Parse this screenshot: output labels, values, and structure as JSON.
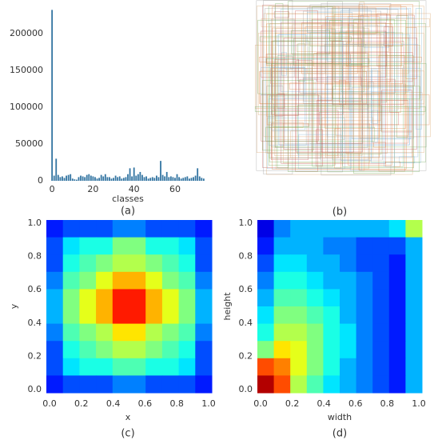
{
  "chart_data": [
    {
      "type": "bar",
      "caption": "(a)",
      "x_label": "classes",
      "color": "#3274a1",
      "x": [
        0,
        1,
        2,
        3,
        4,
        5,
        6,
        7,
        8,
        9,
        10,
        11,
        12,
        13,
        14,
        15,
        16,
        17,
        18,
        19,
        20,
        21,
        22,
        23,
        24,
        25,
        26,
        27,
        28,
        29,
        30,
        31,
        32,
        33,
        34,
        35,
        36,
        37,
        38,
        39,
        40,
        41,
        42,
        43,
        44,
        45,
        46,
        47,
        48,
        49,
        50,
        51,
        52,
        53,
        54,
        55,
        56,
        57,
        58,
        59,
        60,
        61,
        62,
        63,
        64,
        65,
        66,
        67,
        68,
        69,
        70,
        71,
        72,
        73,
        74
      ],
      "values": [
        232000,
        7000,
        30000,
        8000,
        5000,
        6000,
        4000,
        7000,
        8000,
        9000,
        3000,
        2000,
        1500,
        5000,
        7000,
        6000,
        5000,
        8000,
        9000,
        7000,
        6000,
        5000,
        3000,
        4000,
        8000,
        6000,
        9000,
        5000,
        5000,
        3000,
        4000,
        7000,
        5000,
        6000,
        3000,
        4000,
        5000,
        9000,
        17000,
        6000,
        18000,
        7000,
        9000,
        12000,
        8000,
        5000,
        6000,
        3000,
        4000,
        5000,
        4000,
        7000,
        5000,
        27000,
        8000,
        6000,
        12000,
        5000,
        6000,
        5000,
        4000,
        9000,
        5000,
        3000,
        4000,
        5000,
        6000,
        3000,
        4000,
        5000,
        7000,
        17000,
        6000,
        4000,
        3000
      ],
      "xlim": [
        -2,
        76
      ],
      "xticks": [
        0,
        20,
        40,
        60
      ],
      "ylim": [
        0,
        240000
      ],
      "yticks": [
        0,
        50000,
        100000,
        150000,
        200000
      ]
    },
    {
      "type": "boxes",
      "caption": "(b)"
    },
    {
      "type": "heatmap",
      "caption": "(c)",
      "x_label": "x",
      "y_label": "y",
      "xlim": [
        0,
        1
      ],
      "ylim": [
        0,
        1
      ],
      "xticks": [
        {
          "value": 0,
          "label": "0.0"
        },
        {
          "value": 0.2,
          "label": "0.2"
        },
        {
          "value": 0.4,
          "label": "0.4"
        },
        {
          "value": 0.6,
          "label": "0.6"
        },
        {
          "value": 0.8,
          "label": "0.8"
        },
        {
          "value": 1,
          "label": "1.0"
        }
      ],
      "yticks": [
        {
          "value": 0,
          "label": "0.0"
        },
        {
          "value": 0.2,
          "label": "0.2"
        },
        {
          "value": 0.4,
          "label": "0.4"
        },
        {
          "value": 0.6,
          "label": "0.6"
        },
        {
          "value": 0.8,
          "label": "0.8"
        },
        {
          "value": 1,
          "label": "1.0"
        }
      ],
      "z": [
        [
          0.15,
          0.2,
          0.2,
          0.2,
          0.25,
          0.25,
          0.2,
          0.2,
          0.2,
          0.15
        ],
        [
          0.2,
          0.35,
          0.4,
          0.4,
          0.5,
          0.5,
          0.4,
          0.4,
          0.35,
          0.2
        ],
        [
          0.2,
          0.4,
          0.45,
          0.5,
          0.55,
          0.55,
          0.5,
          0.45,
          0.4,
          0.2
        ],
        [
          0.25,
          0.45,
          0.5,
          0.6,
          0.7,
          0.7,
          0.6,
          0.5,
          0.45,
          0.25
        ],
        [
          0.3,
          0.5,
          0.6,
          0.7,
          0.85,
          0.85,
          0.7,
          0.6,
          0.5,
          0.3
        ],
        [
          0.3,
          0.5,
          0.6,
          0.7,
          0.85,
          0.85,
          0.7,
          0.6,
          0.5,
          0.3
        ],
        [
          0.25,
          0.45,
          0.5,
          0.55,
          0.65,
          0.65,
          0.55,
          0.5,
          0.45,
          0.25
        ],
        [
          0.2,
          0.4,
          0.45,
          0.5,
          0.55,
          0.55,
          0.5,
          0.45,
          0.4,
          0.2
        ],
        [
          0.2,
          0.35,
          0.4,
          0.4,
          0.45,
          0.45,
          0.4,
          0.4,
          0.35,
          0.2
        ],
        [
          0.15,
          0.2,
          0.2,
          0.2,
          0.25,
          0.25,
          0.2,
          0.2,
          0.2,
          0.15
        ]
      ]
    },
    {
      "type": "heatmap",
      "caption": "(d)",
      "x_label": "width",
      "y_label": "height",
      "xlim": [
        0,
        1
      ],
      "ylim": [
        0,
        1
      ],
      "xticks": [
        {
          "value": 0,
          "label": "0.0"
        },
        {
          "value": 0.2,
          "label": "0.2"
        },
        {
          "value": 0.4,
          "label": "0.4"
        },
        {
          "value": 0.6,
          "label": "0.6"
        },
        {
          "value": 0.8,
          "label": "0.8"
        },
        {
          "value": 1,
          "label": "1.0"
        }
      ],
      "yticks": [
        {
          "value": 0,
          "label": "0.0"
        },
        {
          "value": 0.2,
          "label": "0.2"
        },
        {
          "value": 0.4,
          "label": "0.4"
        },
        {
          "value": 0.6,
          "label": "0.6"
        },
        {
          "value": 0.8,
          "label": "0.8"
        },
        {
          "value": 1,
          "label": "1.0"
        }
      ],
      "z": [
        [
          0.1,
          0.25,
          0.3,
          0.3,
          0.3,
          0.3,
          0.3,
          0.3,
          0.35,
          0.55
        ],
        [
          0.15,
          0.3,
          0.3,
          0.3,
          0.25,
          0.25,
          0.2,
          0.2,
          0.2,
          0.3
        ],
        [
          0.2,
          0.35,
          0.35,
          0.3,
          0.3,
          0.25,
          0.2,
          0.2,
          0.15,
          0.3
        ],
        [
          0.25,
          0.4,
          0.4,
          0.35,
          0.3,
          0.3,
          0.25,
          0.2,
          0.15,
          0.3
        ],
        [
          0.3,
          0.45,
          0.45,
          0.4,
          0.35,
          0.3,
          0.25,
          0.2,
          0.15,
          0.3
        ],
        [
          0.35,
          0.5,
          0.5,
          0.45,
          0.4,
          0.3,
          0.25,
          0.2,
          0.15,
          0.3
        ],
        [
          0.4,
          0.55,
          0.55,
          0.5,
          0.4,
          0.35,
          0.25,
          0.2,
          0.15,
          0.3
        ],
        [
          0.5,
          0.65,
          0.6,
          0.5,
          0.4,
          0.35,
          0.25,
          0.2,
          0.15,
          0.3
        ],
        [
          0.8,
          0.75,
          0.6,
          0.5,
          0.4,
          0.3,
          0.25,
          0.2,
          0.15,
          0.3
        ],
        [
          0.95,
          0.8,
          0.55,
          0.45,
          0.35,
          0.3,
          0.25,
          0.2,
          0.15,
          0.3
        ]
      ]
    }
  ]
}
